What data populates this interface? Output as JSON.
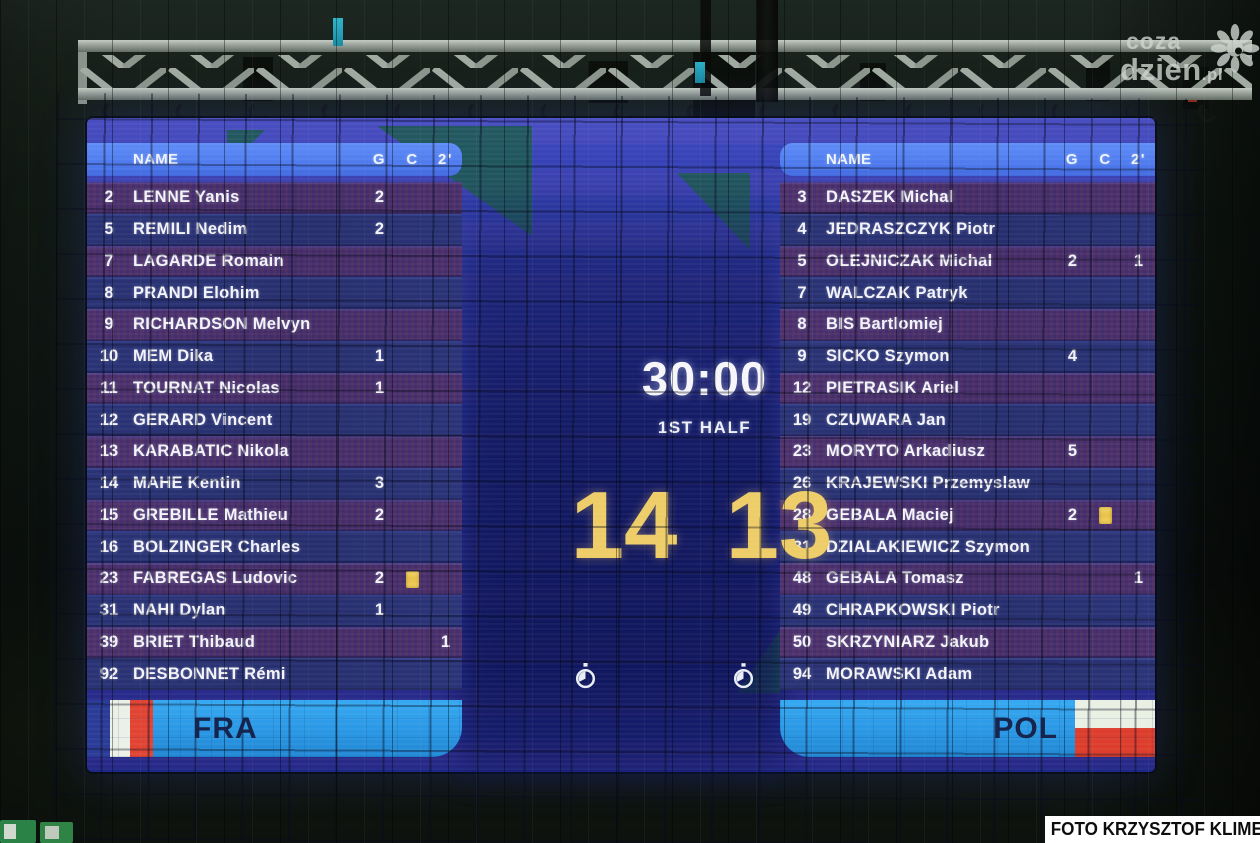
{
  "scoreboard": {
    "clock": "30:00",
    "period": "1ST HALF",
    "score": {
      "home": "14",
      "away": "13"
    },
    "columns": {
      "name": "NAME",
      "goals": "G",
      "cards": "C",
      "suspensions": "2'"
    },
    "home_team": {
      "code": "FRA",
      "players": [
        {
          "num": "2",
          "name": "LENNE Yanis",
          "g": "2",
          "card": false,
          "susp": ""
        },
        {
          "num": "5",
          "name": "REMILI Nedim",
          "g": "2",
          "card": false,
          "susp": ""
        },
        {
          "num": "7",
          "name": "LAGARDE Romain",
          "g": "",
          "card": false,
          "susp": ""
        },
        {
          "num": "8",
          "name": "PRANDI Elohim",
          "g": "",
          "card": false,
          "susp": ""
        },
        {
          "num": "9",
          "name": "RICHARDSON Melvyn",
          "g": "",
          "card": false,
          "susp": ""
        },
        {
          "num": "10",
          "name": "MEM Dika",
          "g": "1",
          "card": false,
          "susp": ""
        },
        {
          "num": "11",
          "name": "TOURNAT Nicolas",
          "g": "1",
          "card": false,
          "susp": ""
        },
        {
          "num": "12",
          "name": "GERARD Vincent",
          "g": "",
          "card": false,
          "susp": ""
        },
        {
          "num": "13",
          "name": "KARABATIC Nikola",
          "g": "",
          "card": false,
          "susp": ""
        },
        {
          "num": "14",
          "name": "MAHE Kentin",
          "g": "3",
          "card": false,
          "susp": ""
        },
        {
          "num": "15",
          "name": "GREBILLE Mathieu",
          "g": "2",
          "card": false,
          "susp": ""
        },
        {
          "num": "16",
          "name": "BOLZINGER Charles",
          "g": "",
          "card": false,
          "susp": ""
        },
        {
          "num": "23",
          "name": "FABREGAS Ludovic",
          "g": "2",
          "card": true,
          "susp": ""
        },
        {
          "num": "31",
          "name": "NAHI Dylan",
          "g": "1",
          "card": false,
          "susp": ""
        },
        {
          "num": "39",
          "name": "BRIET Thibaud",
          "g": "",
          "card": false,
          "susp": "1"
        },
        {
          "num": "92",
          "name": "DESBONNET Rémi",
          "g": "",
          "card": false,
          "susp": ""
        }
      ]
    },
    "away_team": {
      "code": "POL",
      "players": [
        {
          "num": "3",
          "name": "DASZEK Michal",
          "g": "",
          "card": false,
          "susp": ""
        },
        {
          "num": "4",
          "name": "JEDRASZCZYK Piotr",
          "g": "",
          "card": false,
          "susp": ""
        },
        {
          "num": "5",
          "name": "OLEJNICZAK Michal",
          "g": "2",
          "card": false,
          "susp": "1"
        },
        {
          "num": "7",
          "name": "WALCZAK Patryk",
          "g": "",
          "card": false,
          "susp": ""
        },
        {
          "num": "8",
          "name": "BIS Bartlomiej",
          "g": "",
          "card": false,
          "susp": ""
        },
        {
          "num": "9",
          "name": "SICKO Szymon",
          "g": "4",
          "card": false,
          "susp": ""
        },
        {
          "num": "12",
          "name": "PIETRASIK Ariel",
          "g": "",
          "card": false,
          "susp": ""
        },
        {
          "num": "19",
          "name": "CZUWARA Jan",
          "g": "",
          "card": false,
          "susp": ""
        },
        {
          "num": "23",
          "name": "MORYTO Arkadiusz",
          "g": "5",
          "card": false,
          "susp": ""
        },
        {
          "num": "26",
          "name": "KRAJEWSKI Przemyslaw",
          "g": "",
          "card": false,
          "susp": ""
        },
        {
          "num": "28",
          "name": "GEBALA Maciej",
          "g": "2",
          "card": true,
          "susp": ""
        },
        {
          "num": "31",
          "name": "DZIALAKIEWICZ Szymon",
          "g": "",
          "card": false,
          "susp": ""
        },
        {
          "num": "48",
          "name": "GEBALA Tomasz",
          "g": "",
          "card": false,
          "susp": "1"
        },
        {
          "num": "49",
          "name": "CHRAPKOWSKI Piotr",
          "g": "",
          "card": false,
          "susp": ""
        },
        {
          "num": "50",
          "name": "SKRZYNIARZ Jakub",
          "g": "",
          "card": false,
          "susp": ""
        },
        {
          "num": "94",
          "name": "MORAWSKI Adam",
          "g": "",
          "card": false,
          "susp": ""
        }
      ]
    },
    "colors": {
      "score_yellow": "#eecd68",
      "screen_blue": "#2c37a2",
      "header_blue": "#4d78ec",
      "bar_blue": "#2a97e4",
      "card_yellow": "#e7c24a",
      "teal_deco": "#1d5a50"
    }
  },
  "photo": {
    "credit": "FOTO KRZYSZTOF KLIMEK",
    "watermark": {
      "line1": "coza",
      "line2": "dzien",
      "suffix": ".pl"
    }
  }
}
